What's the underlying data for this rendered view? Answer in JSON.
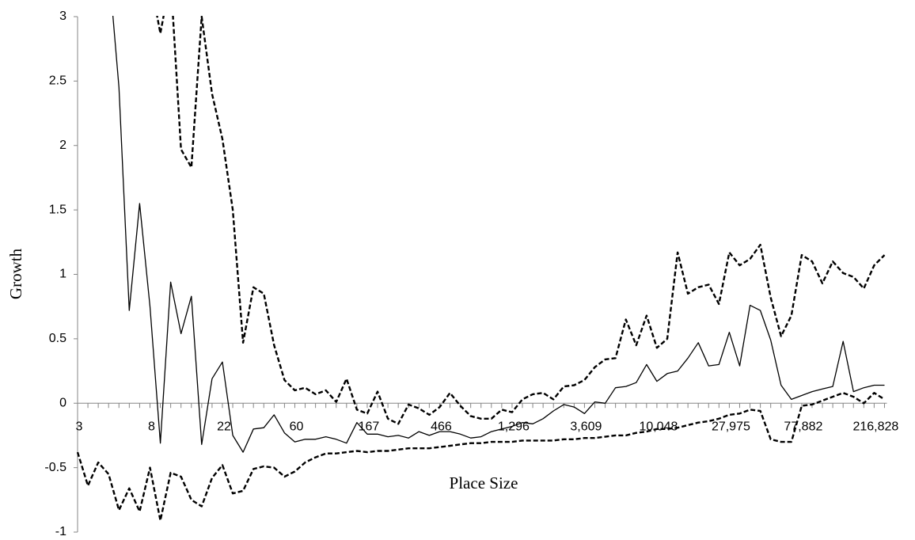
{
  "chart_data": {
    "type": "line",
    "x_label": "Place Size",
    "y_label": "Growth",
    "categories": [
      "3",
      null,
      null,
      null,
      null,
      null,
      null,
      "8",
      null,
      null,
      null,
      null,
      null,
      null,
      "22",
      null,
      null,
      null,
      null,
      null,
      null,
      "60",
      null,
      null,
      null,
      null,
      null,
      null,
      "167",
      null,
      null,
      null,
      null,
      null,
      null,
      "466",
      null,
      null,
      null,
      null,
      null,
      null,
      "1,296",
      null,
      null,
      null,
      null,
      null,
      null,
      "3,609",
      null,
      null,
      null,
      null,
      null,
      null,
      "10,048",
      null,
      null,
      null,
      null,
      null,
      null,
      "27,975",
      null,
      null,
      null,
      null,
      null,
      null,
      "77,882",
      null,
      null,
      null,
      null,
      null,
      null,
      "216,828",
      null
    ],
    "series": [
      {
        "color": "#000000",
        "dashed": false,
        "values": [
          null,
          null,
          null,
          3.4,
          2.45,
          0.72,
          1.55,
          0.75,
          -0.31,
          0.94,
          0.54,
          0.83,
          -0.32,
          0.19,
          0.32,
          -0.25,
          -0.38,
          -0.2,
          -0.19,
          -0.09,
          -0.23,
          -0.3,
          -0.28,
          -0.28,
          -0.26,
          -0.28,
          -0.31,
          -0.15,
          -0.24,
          -0.24,
          -0.26,
          -0.25,
          -0.27,
          -0.22,
          -0.25,
          -0.22,
          -0.22,
          -0.24,
          -0.27,
          -0.26,
          -0.22,
          -0.2,
          -0.18,
          -0.15,
          -0.16,
          -0.12,
          -0.06,
          -0.01,
          -0.03,
          -0.08,
          0.01,
          0.0,
          0.12,
          0.13,
          0.16,
          0.3,
          0.17,
          0.23,
          0.25,
          0.35,
          0.47,
          0.29,
          0.3,
          0.55,
          0.29,
          0.76,
          0.72,
          0.49,
          0.14,
          0.03,
          0.06,
          0.09,
          0.11,
          0.13,
          0.48,
          0.09,
          0.12,
          0.14,
          0.14
        ]
      },
      {
        "color": "#000000",
        "dashed": true,
        "values": [
          null,
          null,
          null,
          null,
          null,
          null,
          null,
          3.3,
          2.87,
          3.3,
          1.97,
          1.83,
          3.0,
          2.4,
          2.05,
          1.5,
          0.47,
          0.9,
          0.85,
          0.45,
          0.18,
          0.1,
          0.12,
          0.07,
          0.1,
          0.01,
          0.19,
          -0.05,
          -0.08,
          0.09,
          -0.12,
          -0.16,
          -0.01,
          -0.04,
          -0.09,
          -0.03,
          0.08,
          -0.02,
          -0.1,
          -0.12,
          -0.12,
          -0.05,
          -0.07,
          0.03,
          0.07,
          0.08,
          0.03,
          0.13,
          0.14,
          0.18,
          0.28,
          0.34,
          0.35,
          0.65,
          0.45,
          0.68,
          0.43,
          0.5,
          1.17,
          0.85,
          0.9,
          0.92,
          0.77,
          1.17,
          1.07,
          1.12,
          1.23,
          0.82,
          0.52,
          0.68,
          1.15,
          1.1,
          0.93,
          1.1,
          1.01,
          0.98,
          0.89,
          1.07,
          1.15
        ]
      },
      {
        "color": "#000000",
        "dashed": true,
        "values": [
          -0.38,
          -0.64,
          -0.46,
          -0.55,
          -0.83,
          -0.66,
          -0.84,
          -0.5,
          -0.91,
          -0.54,
          -0.57,
          -0.75,
          -0.8,
          -0.58,
          -0.48,
          -0.7,
          -0.68,
          -0.51,
          -0.49,
          -0.5,
          -0.57,
          -0.53,
          -0.46,
          -0.42,
          -0.39,
          -0.39,
          -0.38,
          -0.37,
          -0.38,
          -0.37,
          -0.37,
          -0.36,
          -0.35,
          -0.35,
          -0.35,
          -0.34,
          -0.33,
          -0.32,
          -0.31,
          -0.31,
          -0.3,
          -0.3,
          -0.3,
          -0.29,
          -0.29,
          -0.29,
          -0.29,
          -0.28,
          -0.28,
          -0.27,
          -0.27,
          -0.26,
          -0.25,
          -0.25,
          -0.23,
          -0.22,
          -0.2,
          -0.2,
          -0.19,
          -0.17,
          -0.15,
          -0.14,
          -0.12,
          -0.09,
          -0.08,
          -0.05,
          -0.06,
          -0.28,
          -0.3,
          -0.3,
          -0.02,
          -0.01,
          0.02,
          0.05,
          0.08,
          0.05,
          0.0,
          0.08,
          0.03
        ]
      }
    ],
    "ylim": [
      -1,
      3
    ],
    "yticks": [
      -1,
      -0.5,
      0,
      0.5,
      1,
      1.5,
      2,
      2.5,
      3
    ],
    "grid": false
  }
}
